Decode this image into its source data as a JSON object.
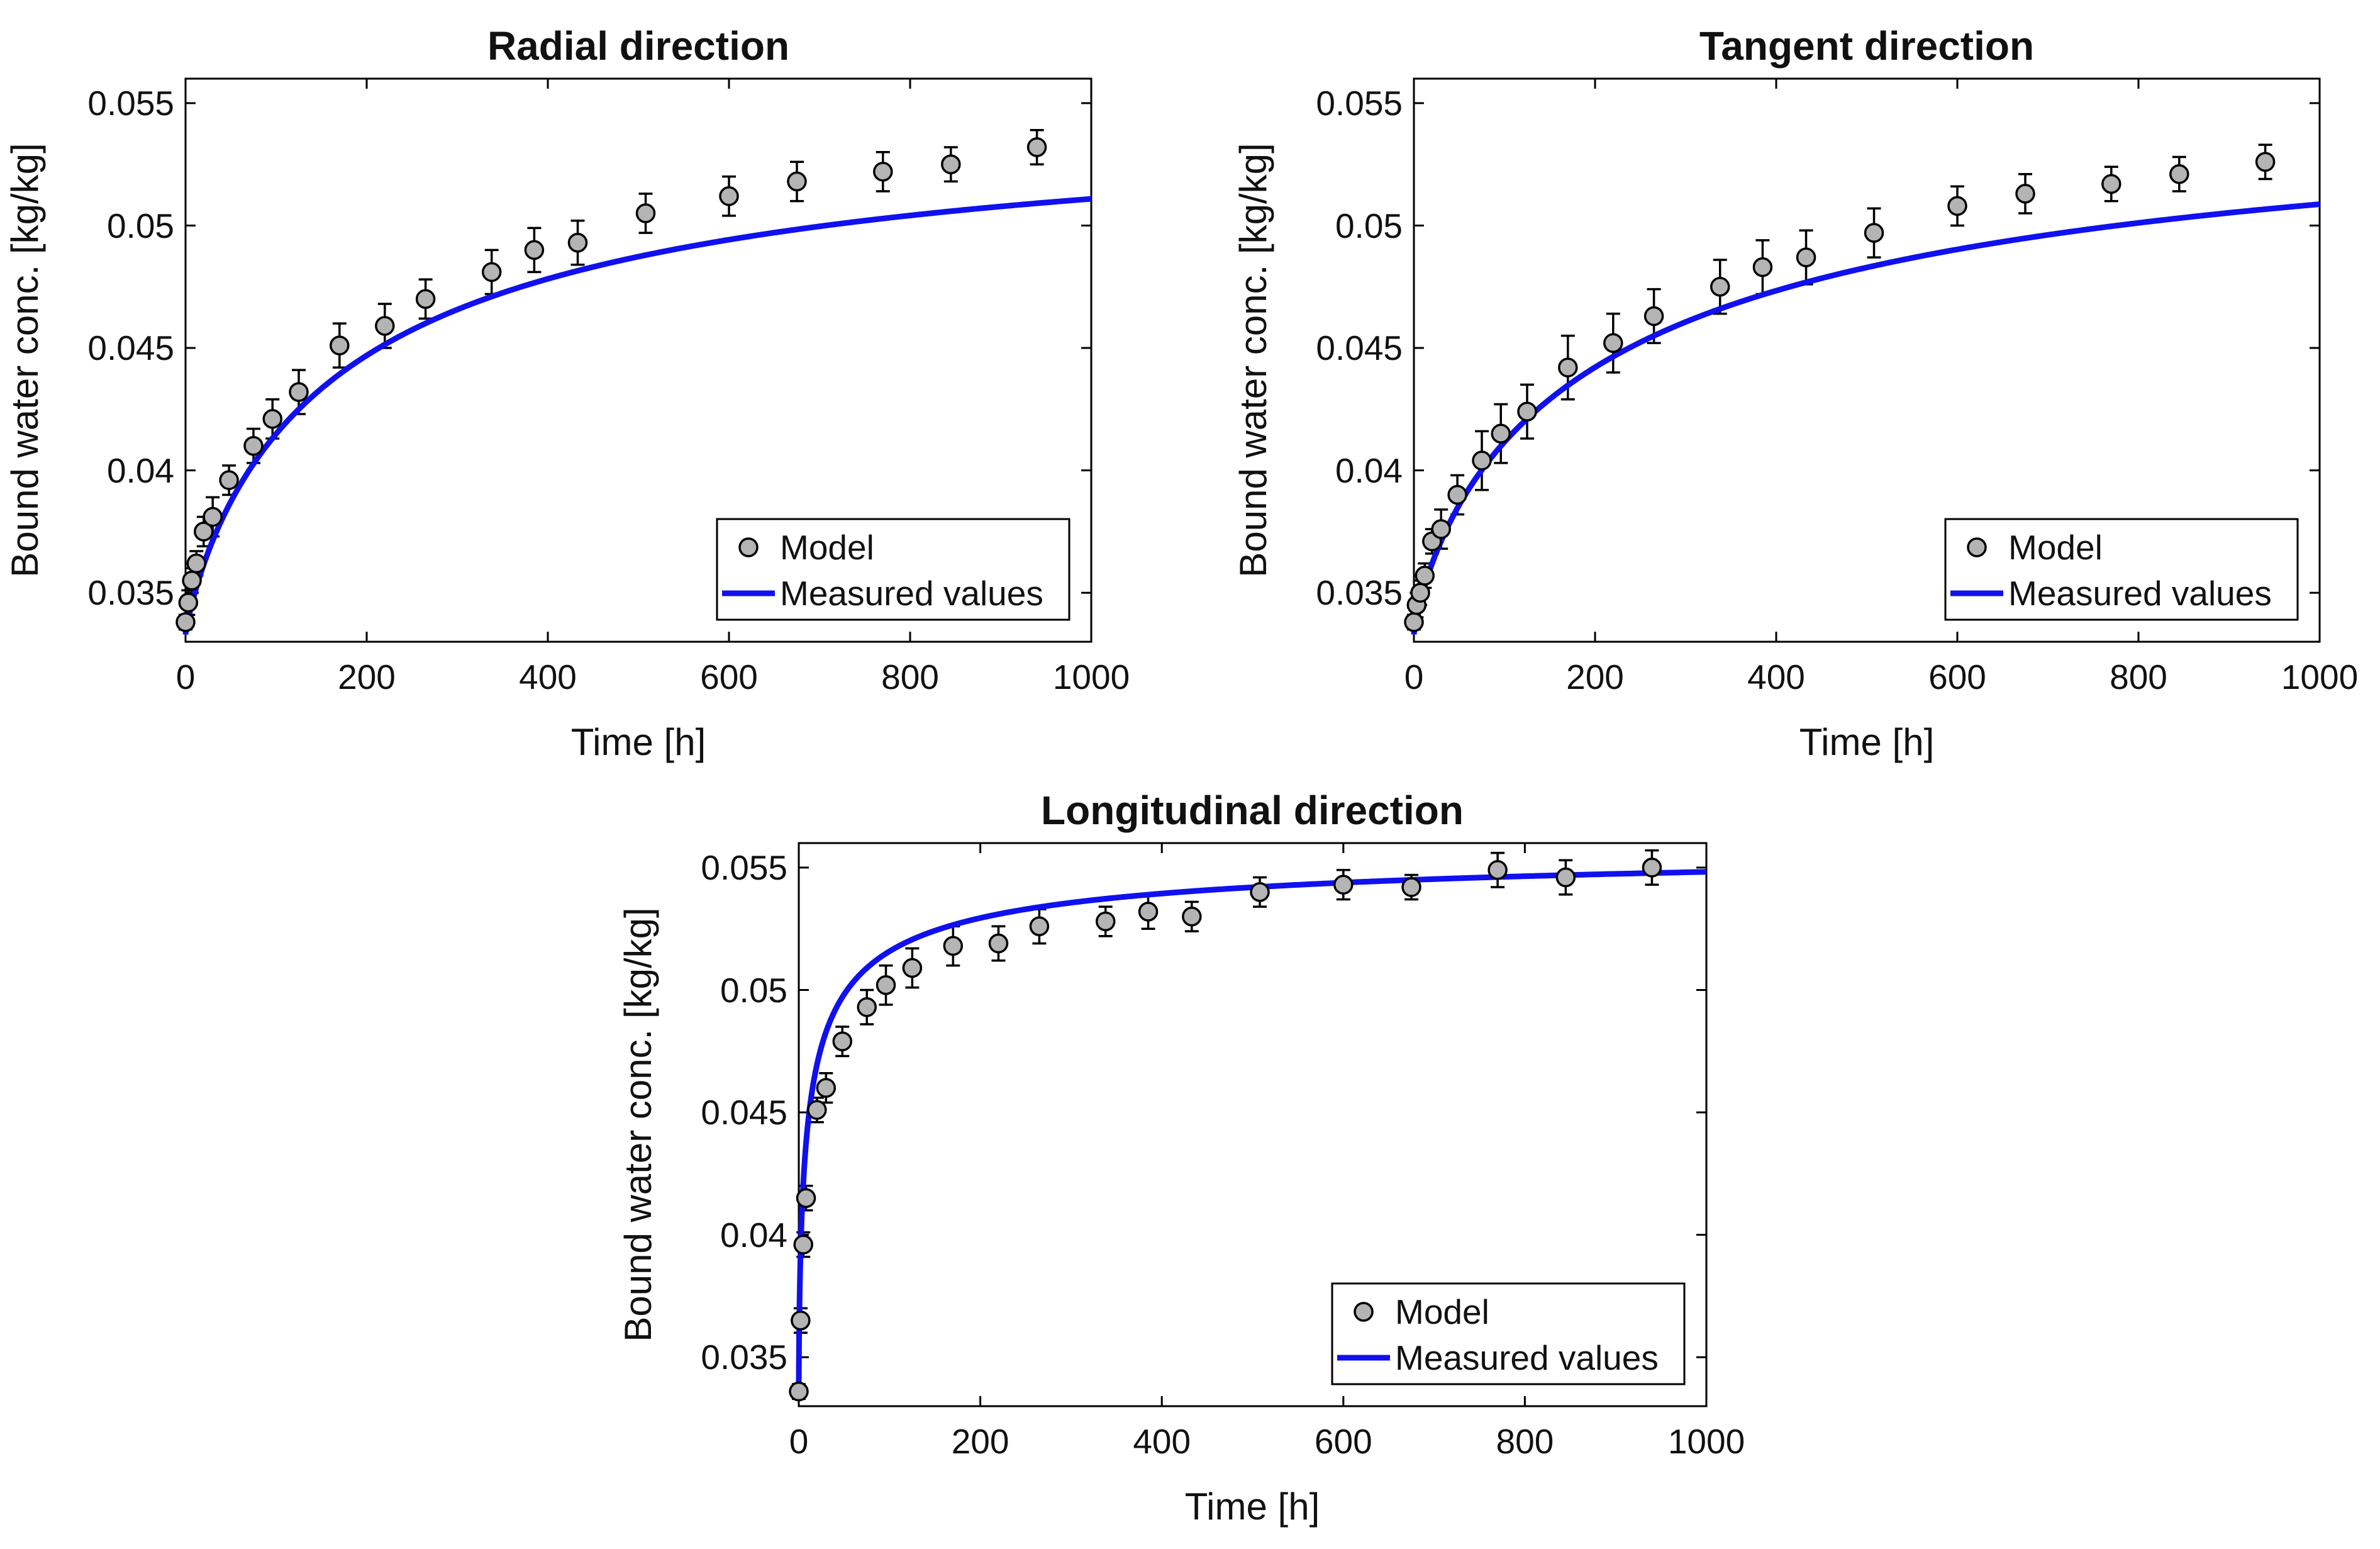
{
  "figure": {
    "colors": {
      "model_marker": "#b4b4b4",
      "measured_line": "#1010f0",
      "axes": "#000000",
      "error_bar": "#000000"
    }
  },
  "chart_data": [
    {
      "type": "scatter",
      "title": "Radial direction",
      "xlabel": "Time [h]",
      "ylabel": "Bound water conc. [kg/kg]",
      "xlim": [
        0,
        1000
      ],
      "ylim": [
        0.033,
        0.056
      ],
      "xticks": [
        0,
        200,
        400,
        600,
        800,
        1000
      ],
      "xtick_labels": [
        "0",
        "200",
        "400",
        "600",
        "800",
        "1000"
      ],
      "yticks": [
        0.035,
        0.04,
        0.045,
        0.05,
        0.055
      ],
      "ytick_labels": [
        "0.035",
        "0.04",
        "0.045",
        "0.05",
        "0.055"
      ],
      "legend": {
        "position": "bottom-right",
        "entries": [
          "Model",
          "Measured values"
        ]
      },
      "curve_param_a": 0.0333,
      "curve_param_b": 0.0219,
      "curve_param_c": 0.86,
      "curve_param_tau": 182,
      "series": [
        {
          "name": "Model",
          "kind": "markers",
          "x": [
            0,
            3,
            7,
            12,
            20,
            30,
            48,
            75,
            96,
            125,
            170,
            220,
            265,
            338,
            385,
            433,
            508,
            600,
            675,
            770,
            845,
            940
          ],
          "y": [
            0.0338,
            0.0346,
            0.0355,
            0.0362,
            0.0375,
            0.0381,
            0.0396,
            0.041,
            0.0421,
            0.0432,
            0.0451,
            0.0459,
            0.047,
            0.0481,
            0.049,
            0.0493,
            0.0505,
            0.0512,
            0.0518,
            0.0522,
            0.0525,
            0.0532
          ],
          "error": [
            0.0003,
            0.0005,
            0.0005,
            0.0005,
            0.0006,
            0.0008,
            0.0006,
            0.0007,
            0.0008,
            0.0009,
            0.0009,
            0.0009,
            0.0008,
            0.0009,
            0.0009,
            0.0009,
            0.0008,
            0.0008,
            0.0008,
            0.0008,
            0.0007,
            0.0007
          ]
        },
        {
          "name": "Measured values",
          "kind": "line"
        }
      ]
    },
    {
      "type": "scatter",
      "title": "Tangent direction",
      "xlabel": "Time [h]",
      "ylabel": "Bound water conc. [kg/kg]",
      "xlim": [
        0,
        1000
      ],
      "ylim": [
        0.033,
        0.056
      ],
      "xticks": [
        0,
        200,
        400,
        600,
        800,
        1000
      ],
      "xtick_labels": [
        "0",
        "200",
        "400",
        "600",
        "800",
        "1000"
      ],
      "yticks": [
        0.035,
        0.04,
        0.045,
        0.05,
        0.055
      ],
      "ytick_labels": [
        "0.035",
        "0.04",
        "0.045",
        "0.05",
        "0.055"
      ],
      "legend": {
        "position": "bottom-right",
        "entries": [
          "Model",
          "Measured values"
        ]
      },
      "curve_param_a": 0.0333,
      "curve_param_b": 0.0229,
      "curve_param_c": 0.8,
      "curve_param_tau": 225,
      "series": [
        {
          "name": "Model",
          "kind": "markers",
          "x": [
            0,
            3,
            7,
            12,
            20,
            30,
            48,
            75,
            96,
            125,
            170,
            220,
            265,
            338,
            385,
            433,
            508,
            600,
            675,
            770,
            845,
            940
          ],
          "y": [
            0.0338,
            0.0345,
            0.035,
            0.0357,
            0.0371,
            0.0376,
            0.039,
            0.0404,
            0.0415,
            0.0424,
            0.0442,
            0.0452,
            0.0463,
            0.0475,
            0.0483,
            0.0487,
            0.0497,
            0.0508,
            0.0513,
            0.0517,
            0.0521,
            0.0526
          ],
          "error": [
            0.0003,
            0.0005,
            0.0005,
            0.0005,
            0.0005,
            0.0008,
            0.0008,
            0.0012,
            0.0012,
            0.0011,
            0.0013,
            0.0012,
            0.0011,
            0.0011,
            0.0011,
            0.0011,
            0.001,
            0.0008,
            0.0008,
            0.0007,
            0.0007,
            0.0007
          ]
        },
        {
          "name": "Measured values",
          "kind": "line"
        }
      ]
    },
    {
      "type": "scatter",
      "title": "Longitudinal direction",
      "xlabel": "Time [h]",
      "ylabel": "Bound water conc. [kg/kg]",
      "xlim": [
        0,
        1000
      ],
      "ylim": [
        0.033,
        0.056
      ],
      "xticks": [
        0,
        200,
        400,
        600,
        800,
        1000
      ],
      "xtick_labels": [
        "0",
        "200",
        "400",
        "600",
        "800",
        "1000"
      ],
      "yticks": [
        0.035,
        0.04,
        0.045,
        0.05,
        0.055
      ],
      "ytick_labels": [
        "0.035",
        "0.04",
        "0.045",
        "0.05",
        "0.055"
      ],
      "legend": {
        "position": "bottom-right",
        "entries": [
          "Model",
          "Measured values"
        ]
      },
      "curve_param_a": 0.0333,
      "curve_param_b": 0.0228,
      "curve_param_c": 0.62,
      "curve_param_tau": 10.5,
      "series": [
        {
          "name": "Model",
          "kind": "markers",
          "x": [
            0,
            2,
            5,
            8,
            20,
            30,
            48,
            75,
            96,
            125,
            170,
            220,
            265,
            338,
            385,
            433,
            508,
            600,
            675,
            770,
            845,
            940
          ],
          "y": [
            0.0336,
            0.0365,
            0.0396,
            0.0415,
            0.0451,
            0.046,
            0.0479,
            0.0493,
            0.0502,
            0.0509,
            0.0518,
            0.0519,
            0.0526,
            0.0528,
            0.0532,
            0.053,
            0.054,
            0.0543,
            0.0542,
            0.0549,
            0.0546,
            0.055
          ],
          "error": [
            0.0003,
            0.0005,
            0.0005,
            0.0005,
            0.0005,
            0.0006,
            0.0006,
            0.0007,
            0.0008,
            0.0008,
            0.0008,
            0.0007,
            0.0007,
            0.0006,
            0.0007,
            0.0006,
            0.0006,
            0.0006,
            0.0005,
            0.0007,
            0.0007,
            0.0007
          ]
        },
        {
          "name": "Measured values",
          "kind": "line"
        }
      ]
    }
  ]
}
